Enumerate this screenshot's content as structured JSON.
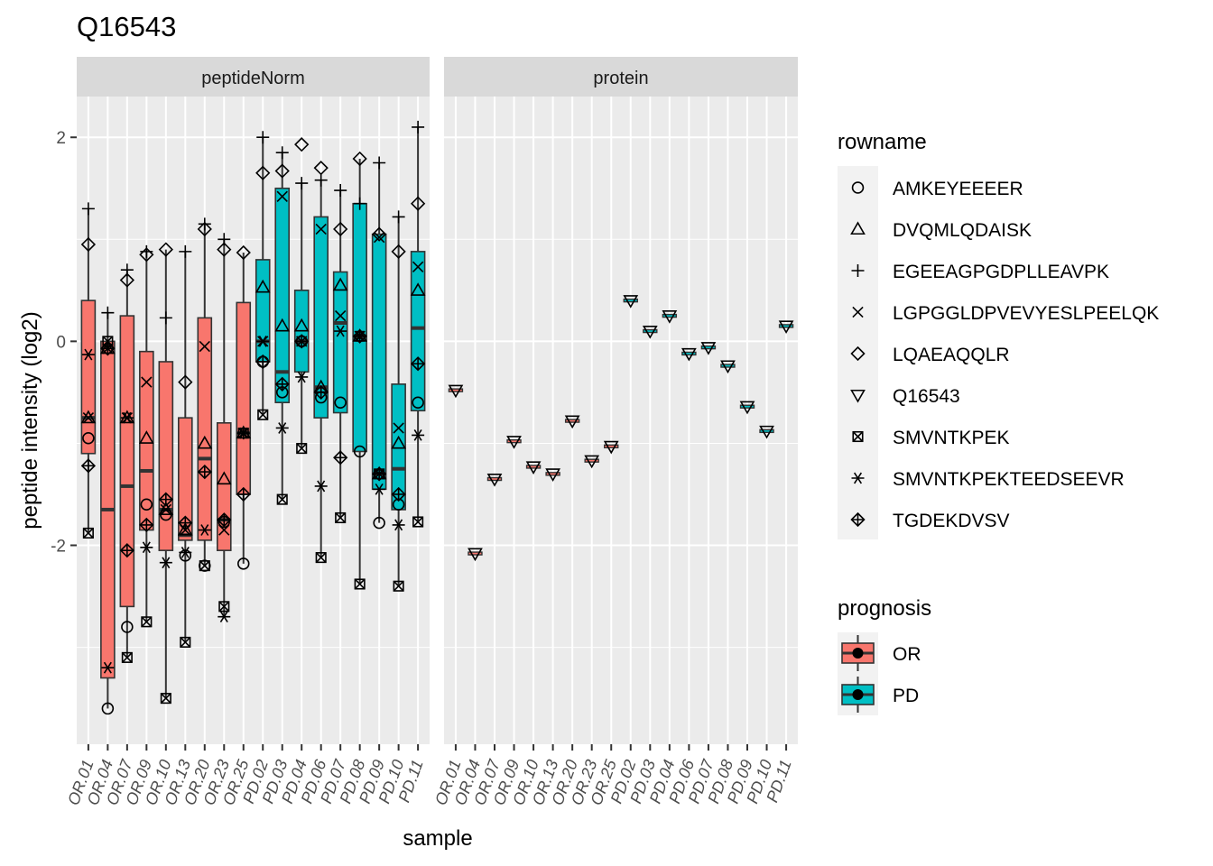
{
  "chart_data": {
    "type": "boxplot",
    "title": "Q16543",
    "xlabel": "sample",
    "ylabel": "peptide intensity (log2)",
    "ylim": [
      -3.95,
      2.4
    ],
    "y_ticks": [
      -2,
      0,
      2
    ],
    "grid": true,
    "legend_placement": "right",
    "facets": [
      "peptideNorm",
      "protein"
    ],
    "samples": [
      "OR.01",
      "OR.04",
      "OR.07",
      "OR.09",
      "OR.10",
      "OR.13",
      "OR.20",
      "OR.23",
      "OR.25",
      "PD.02",
      "PD.03",
      "PD.04",
      "PD.06",
      "PD.07",
      "PD.08",
      "PD.09",
      "PD.10",
      "PD.11"
    ],
    "prognosis": [
      "OR",
      "OR",
      "OR",
      "OR",
      "OR",
      "OR",
      "OR",
      "OR",
      "OR",
      "PD",
      "PD",
      "PD",
      "PD",
      "PD",
      "PD",
      "PD",
      "PD",
      "PD"
    ],
    "prognosis_legend": {
      "title": "prognosis",
      "items": [
        {
          "label": "OR",
          "color": "#F8766D"
        },
        {
          "label": "PD",
          "color": "#00BFC4"
        }
      ]
    },
    "rowname_legend": {
      "title": "rowname",
      "items": [
        {
          "label": "AMKEYEEEER",
          "shape": "circle"
        },
        {
          "label": "DVQMLQDAISK",
          "shape": "triangle"
        },
        {
          "label": "EGEEAGPGDPLLEAVPK",
          "shape": "plus"
        },
        {
          "label": "LGPGGLDPVEVYESLPEELQK",
          "shape": "cross"
        },
        {
          "label": "LQAEAQQLR",
          "shape": "diamond"
        },
        {
          "label": "Q16543",
          "shape": "triangle-down"
        },
        {
          "label": "SMVNTKPEK",
          "shape": "square-cross"
        },
        {
          "label": "SMVNTKPEKTEEDSEEVR",
          "shape": "asterisk"
        },
        {
          "label": "TGDEKDVSV",
          "shape": "diamond-plus"
        }
      ]
    },
    "peptideNorm": {
      "boxes": [
        {
          "q1": -1.1,
          "median": -0.75,
          "q3": 0.4,
          "low": -1.88,
          "high": 1.3
        },
        {
          "q1": -3.3,
          "median": -1.65,
          "q3": 0.0,
          "low": -3.6,
          "high": 0.28
        },
        {
          "q1": -2.6,
          "median": -1.42,
          "q3": 0.25,
          "low": -3.1,
          "high": 0.7
        },
        {
          "q1": -1.85,
          "median": -1.27,
          "q3": -0.1,
          "low": -2.75,
          "high": 0.88
        },
        {
          "q1": -2.05,
          "median": -1.65,
          "q3": -0.2,
          "low": -3.5,
          "high": 0.9
        },
        {
          "q1": -1.95,
          "median": -1.9,
          "q3": -0.75,
          "low": -2.95,
          "high": 0.88
        },
        {
          "q1": -1.95,
          "median": -1.15,
          "q3": 0.23,
          "low": -2.2,
          "high": 1.15
        },
        {
          "q1": -2.05,
          "median": -1.75,
          "q3": -0.8,
          "low": -2.7,
          "high": 1.0
        },
        {
          "q1": -1.5,
          "median": -0.9,
          "q3": 0.38,
          "low": -2.18,
          "high": 0.87
        },
        {
          "q1": -0.2,
          "median": 0.0,
          "q3": 0.8,
          "low": -0.72,
          "high": 2.0
        },
        {
          "q1": -0.6,
          "median": -0.3,
          "q3": 1.5,
          "low": -1.55,
          "high": 1.85
        },
        {
          "q1": -0.3,
          "median": 0.0,
          "q3": 0.5,
          "low": -1.05,
          "high": 1.55
        },
        {
          "q1": -0.75,
          "median": -0.45,
          "q3": 1.22,
          "low": -2.12,
          "high": 1.58
        },
        {
          "q1": -0.7,
          "median": 0.18,
          "q3": 0.68,
          "low": -1.73,
          "high": 1.48
        },
        {
          "q1": -1.08,
          "median": 0.05,
          "q3": 1.35,
          "low": -2.38,
          "high": 1.79
        },
        {
          "q1": -1.45,
          "median": -1.3,
          "q3": 1.05,
          "low": -1.78,
          "high": 1.75
        },
        {
          "q1": -1.65,
          "median": -1.25,
          "q3": -0.42,
          "low": -2.4,
          "high": 1.22
        },
        {
          "q1": -0.68,
          "median": 0.13,
          "q3": 0.88,
          "low": -1.77,
          "high": 2.1
        }
      ],
      "points": {
        "AMKEYEEEER": [
          -0.95,
          -3.6,
          -2.8,
          -1.6,
          -1.7,
          -2.1,
          -2.2,
          -1.77,
          -2.18,
          -0.2,
          -0.5,
          0.0,
          -0.55,
          -0.6,
          -1.08,
          -1.78,
          -1.6,
          -0.6
        ],
        "DVQMLQDAISK": [
          -0.75,
          -0.07,
          -0.75,
          -0.95,
          -1.65,
          -1.85,
          -1.0,
          -1.35,
          -0.9,
          0.53,
          0.15,
          0.15,
          -0.45,
          0.55,
          0.05,
          -1.3,
          -1.0,
          0.5
        ],
        "EGEEAGPGDPLLEAVPK": [
          1.3,
          0.28,
          0.7,
          0.88,
          0.23,
          0.88,
          1.15,
          1.0,
          -0.9,
          2.0,
          1.85,
          1.55,
          1.58,
          1.48,
          1.35,
          1.75,
          1.22,
          2.1
        ],
        "LGPGGLDPVEVYESLPEELQK": [
          -0.75,
          -0.07,
          -0.75,
          -0.4,
          -1.65,
          -1.85,
          -0.05,
          -1.85,
          -0.9,
          0.0,
          1.42,
          0.0,
          1.1,
          0.25,
          0.05,
          1.02,
          -0.85,
          0.73
        ],
        "LQAEAQQLR": [
          0.95,
          -0.07,
          0.6,
          0.85,
          0.9,
          -0.4,
          1.1,
          0.9,
          0.87,
          1.65,
          1.67,
          1.93,
          1.7,
          1.1,
          1.79,
          1.05,
          0.88,
          1.35
        ],
        "SMVNTKPEK": [
          -1.88,
          0.0,
          -3.1,
          -2.75,
          -3.5,
          -2.95,
          -2.2,
          -2.6,
          -0.9,
          -0.72,
          -1.55,
          -1.05,
          -2.12,
          -1.73,
          -2.38,
          -1.3,
          -2.4,
          -1.77
        ],
        "SMVNTKPEKTEEDSEEVR": [
          -0.13,
          -3.2,
          -0.75,
          -2.02,
          -2.17,
          -2.07,
          -1.85,
          -2.7,
          -0.9,
          0.0,
          -0.85,
          -0.35,
          -1.42,
          0.1,
          0.05,
          -1.45,
          -1.8,
          -0.92
        ],
        "TGDEKDVSV": [
          -1.22,
          -0.07,
          -2.05,
          -1.8,
          -1.55,
          -1.78,
          -1.28,
          -1.75,
          -1.5,
          -0.2,
          -0.42,
          0.0,
          -0.5,
          -1.14,
          0.05,
          -1.3,
          -1.5,
          -0.22
        ]
      }
    },
    "protein": {
      "values": [
        -0.48,
        -2.08,
        -1.35,
        -0.98,
        -1.23,
        -1.3,
        -0.78,
        -1.17,
        -1.03,
        0.4,
        0.1,
        0.25,
        -0.12,
        -0.06,
        -0.24,
        -0.64,
        -0.88,
        0.15
      ]
    }
  }
}
